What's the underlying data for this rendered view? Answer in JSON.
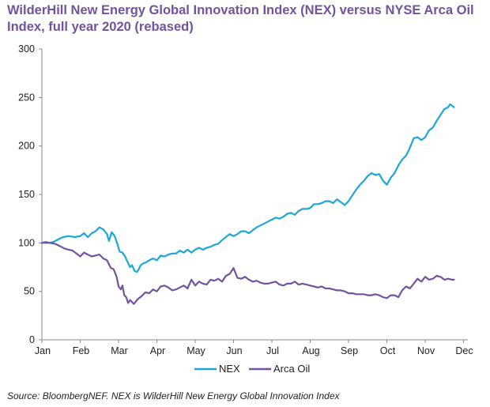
{
  "chart_data": {
    "type": "line",
    "title_lines": [
      "WilderHill New Energy Global Innovation Index (NEX) versus NYSE Arca Oil",
      "Index, full year 2020 (rebased)"
    ],
    "xlabel": "",
    "ylabel": "",
    "x_ticks": [
      "Jan",
      "Feb",
      "Mar",
      "Apr",
      "May",
      "Jun",
      "Jul",
      "Aug",
      "Sep",
      "Oct",
      "Nov",
      "Dec"
    ],
    "y_ticks": [
      "0",
      "50",
      "100",
      "150",
      "200",
      "250",
      "300"
    ],
    "ylim": [
      0,
      300
    ],
    "grid": false,
    "legend_position": "bottom-center",
    "series": [
      {
        "name": "NEX",
        "color": "#1CA6D9",
        "points": [
          [
            0,
            100
          ],
          [
            0.1,
            101
          ],
          [
            0.2,
            100
          ],
          [
            0.3,
            101
          ],
          [
            0.45,
            104
          ],
          [
            0.55,
            106
          ],
          [
            0.7,
            107
          ],
          [
            0.85,
            106
          ],
          [
            1.0,
            107
          ],
          [
            1.1,
            110
          ],
          [
            1.2,
            106
          ],
          [
            1.3,
            110
          ],
          [
            1.4,
            112
          ],
          [
            1.5,
            116
          ],
          [
            1.6,
            114
          ],
          [
            1.7,
            109
          ],
          [
            1.75,
            102
          ],
          [
            1.82,
            111
          ],
          [
            1.9,
            107
          ],
          [
            1.97,
            99
          ],
          [
            2.03,
            91
          ],
          [
            2.1,
            90
          ],
          [
            2.17,
            86
          ],
          [
            2.24,
            80
          ],
          [
            2.3,
            75
          ],
          [
            2.35,
            77
          ],
          [
            2.42,
            71
          ],
          [
            2.48,
            70
          ],
          [
            2.53,
            73
          ],
          [
            2.58,
            77
          ],
          [
            2.65,
            79
          ],
          [
            2.72,
            80
          ],
          [
            2.8,
            82
          ],
          [
            2.9,
            84
          ],
          [
            3.0,
            82
          ],
          [
            3.1,
            87
          ],
          [
            3.2,
            86
          ],
          [
            3.3,
            88
          ],
          [
            3.4,
            89
          ],
          [
            3.5,
            89
          ],
          [
            3.6,
            92
          ],
          [
            3.7,
            90
          ],
          [
            3.8,
            93
          ],
          [
            3.9,
            90
          ],
          [
            4.0,
            93
          ],
          [
            4.1,
            95
          ],
          [
            4.2,
            93
          ],
          [
            4.3,
            95
          ],
          [
            4.4,
            96
          ],
          [
            4.5,
            98
          ],
          [
            4.6,
            99
          ],
          [
            4.7,
            103
          ],
          [
            4.8,
            106
          ],
          [
            4.9,
            109
          ],
          [
            5.0,
            107
          ],
          [
            5.1,
            109
          ],
          [
            5.2,
            112
          ],
          [
            5.3,
            112
          ],
          [
            5.4,
            110
          ],
          [
            5.5,
            113
          ],
          [
            5.6,
            116
          ],
          [
            5.7,
            118
          ],
          [
            5.8,
            120
          ],
          [
            5.9,
            122
          ],
          [
            6.0,
            124
          ],
          [
            6.1,
            126
          ],
          [
            6.2,
            125
          ],
          [
            6.3,
            127
          ],
          [
            6.4,
            130
          ],
          [
            6.5,
            131
          ],
          [
            6.6,
            129
          ],
          [
            6.7,
            133
          ],
          [
            6.8,
            135
          ],
          [
            6.9,
            135
          ],
          [
            7.0,
            136
          ],
          [
            7.1,
            140
          ],
          [
            7.2,
            140
          ],
          [
            7.3,
            141
          ],
          [
            7.4,
            143
          ],
          [
            7.5,
            143
          ],
          [
            7.6,
            141
          ],
          [
            7.7,
            145
          ],
          [
            7.8,
            142
          ],
          [
            7.9,
            139
          ],
          [
            8.0,
            143
          ],
          [
            8.1,
            149
          ],
          [
            8.2,
            155
          ],
          [
            8.3,
            160
          ],
          [
            8.4,
            164
          ],
          [
            8.5,
            169
          ],
          [
            8.6,
            172
          ],
          [
            8.7,
            170
          ],
          [
            8.8,
            171
          ],
          [
            8.9,
            164
          ],
          [
            9.0,
            160
          ],
          [
            9.1,
            167
          ],
          [
            9.2,
            172
          ],
          [
            9.3,
            180
          ],
          [
            9.4,
            186
          ],
          [
            9.5,
            190
          ],
          [
            9.6,
            198
          ],
          [
            9.7,
            208
          ],
          [
            9.8,
            209
          ],
          [
            9.9,
            206
          ],
          [
            10.0,
            209
          ],
          [
            10.1,
            216
          ],
          [
            10.2,
            219
          ],
          [
            10.3,
            226
          ],
          [
            10.4,
            232
          ],
          [
            10.5,
            238
          ],
          [
            10.6,
            240
          ],
          [
            10.65,
            243
          ],
          [
            10.75,
            240
          ]
        ]
      },
      {
        "name": "Arca Oil",
        "color": "#7153A0",
        "points": [
          [
            0,
            100
          ],
          [
            0.1,
            100
          ],
          [
            0.2,
            100
          ],
          [
            0.35,
            99
          ],
          [
            0.5,
            96
          ],
          [
            0.6,
            94
          ],
          [
            0.7,
            93
          ],
          [
            0.8,
            92
          ],
          [
            0.9,
            89
          ],
          [
            1.0,
            86
          ],
          [
            1.1,
            90
          ],
          [
            1.2,
            88
          ],
          [
            1.3,
            86
          ],
          [
            1.4,
            87
          ],
          [
            1.5,
            88
          ],
          [
            1.6,
            84
          ],
          [
            1.7,
            82
          ],
          [
            1.8,
            74
          ],
          [
            1.87,
            73
          ],
          [
            1.95,
            65
          ],
          [
            2.0,
            55
          ],
          [
            2.06,
            52
          ],
          [
            2.1,
            56
          ],
          [
            2.15,
            46
          ],
          [
            2.2,
            44
          ],
          [
            2.25,
            38
          ],
          [
            2.3,
            41
          ],
          [
            2.4,
            37
          ],
          [
            2.5,
            42
          ],
          [
            2.6,
            45
          ],
          [
            2.7,
            49
          ],
          [
            2.8,
            48
          ],
          [
            2.9,
            52
          ],
          [
            3.0,
            50
          ],
          [
            3.1,
            55
          ],
          [
            3.2,
            56
          ],
          [
            3.3,
            54
          ],
          [
            3.4,
            51
          ],
          [
            3.5,
            52
          ],
          [
            3.6,
            54
          ],
          [
            3.7,
            56
          ],
          [
            3.8,
            53
          ],
          [
            3.9,
            62
          ],
          [
            4.0,
            56
          ],
          [
            4.1,
            60
          ],
          [
            4.2,
            58
          ],
          [
            4.3,
            57
          ],
          [
            4.4,
            62
          ],
          [
            4.5,
            61
          ],
          [
            4.6,
            63
          ],
          [
            4.7,
            60
          ],
          [
            4.8,
            66
          ],
          [
            4.9,
            68
          ],
          [
            5.0,
            74
          ],
          [
            5.1,
            64
          ],
          [
            5.2,
            63
          ],
          [
            5.3,
            65
          ],
          [
            5.4,
            62
          ],
          [
            5.5,
            60
          ],
          [
            5.6,
            61
          ],
          [
            5.7,
            59
          ],
          [
            5.8,
            58
          ],
          [
            5.9,
            58
          ],
          [
            6.0,
            59
          ],
          [
            6.1,
            60
          ],
          [
            6.2,
            57
          ],
          [
            6.3,
            56
          ],
          [
            6.4,
            58
          ],
          [
            6.5,
            58
          ],
          [
            6.6,
            60
          ],
          [
            6.7,
            57
          ],
          [
            6.8,
            58
          ],
          [
            6.9,
            57
          ],
          [
            7.0,
            56
          ],
          [
            7.1,
            55
          ],
          [
            7.2,
            54
          ],
          [
            7.3,
            55
          ],
          [
            7.4,
            53
          ],
          [
            7.5,
            53
          ],
          [
            7.6,
            52
          ],
          [
            7.7,
            51
          ],
          [
            7.8,
            51
          ],
          [
            7.9,
            50
          ],
          [
            8.0,
            48
          ],
          [
            8.1,
            48
          ],
          [
            8.2,
            47
          ],
          [
            8.3,
            47
          ],
          [
            8.4,
            47
          ],
          [
            8.5,
            46
          ],
          [
            8.6,
            46
          ],
          [
            8.7,
            47
          ],
          [
            8.8,
            46
          ],
          [
            8.9,
            44
          ],
          [
            9.0,
            43
          ],
          [
            9.1,
            46
          ],
          [
            9.2,
            46
          ],
          [
            9.3,
            44
          ],
          [
            9.4,
            51
          ],
          [
            9.5,
            55
          ],
          [
            9.6,
            53
          ],
          [
            9.7,
            58
          ],
          [
            9.8,
            63
          ],
          [
            9.9,
            60
          ],
          [
            10.0,
            65
          ],
          [
            10.1,
            62
          ],
          [
            10.2,
            63
          ],
          [
            10.3,
            66
          ],
          [
            10.4,
            65
          ],
          [
            10.5,
            62
          ],
          [
            10.6,
            63
          ],
          [
            10.7,
            62
          ],
          [
            10.75,
            62
          ]
        ]
      }
    ]
  },
  "source": "Source: BloombergNEF. NEX is WilderHill New Energy Global Innovation Index"
}
